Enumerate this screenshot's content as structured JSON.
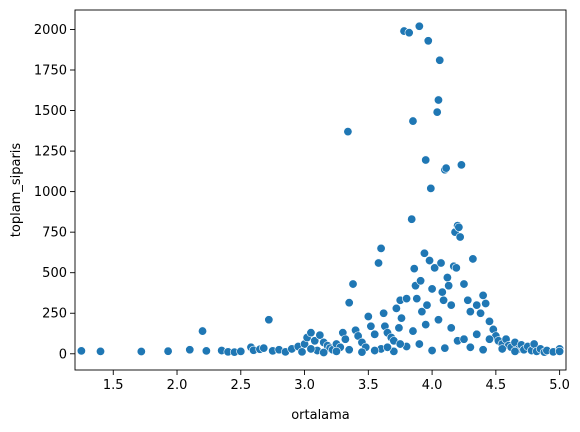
{
  "chart_data": {
    "type": "scatter",
    "title": "",
    "xlabel": "ortalama",
    "ylabel": "toplam_siparis",
    "xlim": [
      1.2,
      5.05
    ],
    "ylim": [
      -100,
      2120
    ],
    "xticks": [
      1.5,
      2.0,
      2.5,
      3.0,
      3.5,
      4.0,
      4.5,
      5.0
    ],
    "xtick_labels": [
      "1.5",
      "2.0",
      "2.5",
      "3.0",
      "3.5",
      "4.0",
      "4.5",
      "5.0"
    ],
    "yticks": [
      0,
      250,
      500,
      750,
      1000,
      1250,
      1500,
      1750,
      2000
    ],
    "ytick_labels": [
      "0",
      "250",
      "500",
      "750",
      "1000",
      "1250",
      "1500",
      "1750",
      "2000"
    ],
    "grid": false,
    "marker_color": "#1f77b4",
    "series": [
      {
        "points": [
          [
            1.25,
            18
          ],
          [
            1.4,
            15
          ],
          [
            1.72,
            14
          ],
          [
            1.93,
            16
          ],
          [
            2.1,
            25
          ],
          [
            2.2,
            140
          ],
          [
            2.23,
            18
          ],
          [
            2.35,
            20
          ],
          [
            2.4,
            12
          ],
          [
            2.45,
            10
          ],
          [
            2.5,
            15
          ],
          [
            2.58,
            40
          ],
          [
            2.6,
            22
          ],
          [
            2.65,
            28
          ],
          [
            2.68,
            35
          ],
          [
            2.72,
            210
          ],
          [
            2.75,
            18
          ],
          [
            2.8,
            25
          ],
          [
            2.85,
            12
          ],
          [
            2.9,
            30
          ],
          [
            2.95,
            45
          ],
          [
            3.0,
            60
          ],
          [
            3.02,
            100
          ],
          [
            3.05,
            130
          ],
          [
            3.08,
            80
          ],
          [
            3.1,
            20
          ],
          [
            3.12,
            115
          ],
          [
            3.15,
            70
          ],
          [
            3.18,
            50
          ],
          [
            3.2,
            35
          ],
          [
            3.22,
            25
          ],
          [
            3.25,
            60
          ],
          [
            3.28,
            40
          ],
          [
            3.3,
            130
          ],
          [
            3.32,
            90
          ],
          [
            3.34,
            1370
          ],
          [
            3.35,
            315
          ],
          [
            3.38,
            430
          ],
          [
            3.4,
            145
          ],
          [
            3.42,
            110
          ],
          [
            3.45,
            70
          ],
          [
            3.48,
            40
          ],
          [
            3.5,
            230
          ],
          [
            3.52,
            170
          ],
          [
            3.55,
            120
          ],
          [
            3.58,
            560
          ],
          [
            3.6,
            650
          ],
          [
            3.62,
            250
          ],
          [
            3.63,
            170
          ],
          [
            3.65,
            130
          ],
          [
            3.68,
            100
          ],
          [
            3.7,
            80
          ],
          [
            3.72,
            280
          ],
          [
            3.74,
            160
          ],
          [
            3.75,
            330
          ],
          [
            3.76,
            220
          ],
          [
            3.78,
            1990
          ],
          [
            3.8,
            340
          ],
          [
            3.82,
            1980
          ],
          [
            3.84,
            830
          ],
          [
            3.85,
            1435
          ],
          [
            3.86,
            525
          ],
          [
            3.87,
            420
          ],
          [
            3.88,
            340
          ],
          [
            3.9,
            2020
          ],
          [
            3.91,
            450
          ],
          [
            3.92,
            260
          ],
          [
            3.94,
            620
          ],
          [
            3.95,
            1195
          ],
          [
            3.96,
            300
          ],
          [
            3.97,
            1930
          ],
          [
            3.98,
            575
          ],
          [
            3.99,
            1020
          ],
          [
            4.0,
            400
          ],
          [
            4.02,
            530
          ],
          [
            4.04,
            1490
          ],
          [
            4.05,
            1565
          ],
          [
            4.06,
            1810
          ],
          [
            4.07,
            560
          ],
          [
            4.08,
            380
          ],
          [
            4.09,
            330
          ],
          [
            4.1,
            1135
          ],
          [
            4.11,
            1145
          ],
          [
            4.12,
            470
          ],
          [
            4.13,
            420
          ],
          [
            4.15,
            300
          ],
          [
            4.17,
            540
          ],
          [
            4.18,
            750
          ],
          [
            4.19,
            530
          ],
          [
            4.2,
            790
          ],
          [
            4.21,
            780
          ],
          [
            4.22,
            720
          ],
          [
            4.23,
            1165
          ],
          [
            4.25,
            430
          ],
          [
            4.28,
            330
          ],
          [
            4.3,
            260
          ],
          [
            4.32,
            585
          ],
          [
            4.35,
            300
          ],
          [
            4.38,
            250
          ],
          [
            4.4,
            360
          ],
          [
            4.42,
            310
          ],
          [
            4.45,
            200
          ],
          [
            4.48,
            150
          ],
          [
            4.5,
            110
          ],
          [
            4.52,
            80
          ],
          [
            4.55,
            60
          ],
          [
            4.58,
            90
          ],
          [
            4.6,
            50
          ],
          [
            4.62,
            40
          ],
          [
            4.65,
            70
          ],
          [
            4.68,
            30
          ],
          [
            4.7,
            55
          ],
          [
            4.72,
            25
          ],
          [
            4.75,
            45
          ],
          [
            4.78,
            20
          ],
          [
            4.8,
            60
          ],
          [
            4.82,
            15
          ],
          [
            4.85,
            30
          ],
          [
            4.88,
            10
          ],
          [
            4.9,
            20
          ],
          [
            4.95,
            12
          ],
          [
            5.0,
            30
          ],
          [
            5.0,
            15
          ],
          [
            3.6,
            30
          ],
          [
            3.7,
            15
          ],
          [
            3.8,
            45
          ],
          [
            3.9,
            60
          ],
          [
            4.0,
            20
          ],
          [
            4.1,
            35
          ],
          [
            4.2,
            80
          ],
          [
            4.3,
            40
          ],
          [
            4.4,
            25
          ],
          [
            4.35,
            120
          ],
          [
            4.25,
            90
          ],
          [
            4.15,
            160
          ],
          [
            4.05,
            210
          ],
          [
            3.95,
            180
          ],
          [
            3.85,
            140
          ],
          [
            3.75,
            60
          ],
          [
            3.65,
            40
          ],
          [
            4.45,
            90
          ],
          [
            4.55,
            30
          ],
          [
            4.65,
            15
          ],
          [
            3.55,
            20
          ],
          [
            3.45,
            10
          ],
          [
            3.35,
            25
          ],
          [
            3.25,
            15
          ],
          [
            3.15,
            8
          ],
          [
            3.05,
            30
          ],
          [
            2.98,
            12
          ]
        ]
      }
    ]
  }
}
